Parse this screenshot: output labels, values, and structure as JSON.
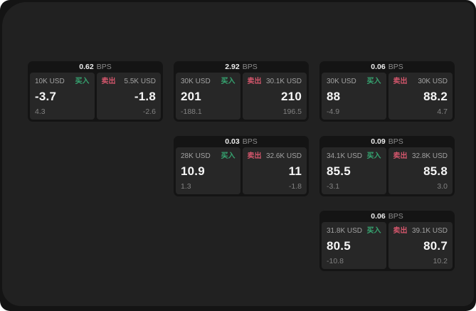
{
  "colors": {
    "buy_green": "#36a571",
    "sell_red": "#d4566c",
    "panel_bg": "#212121",
    "card_bg": "#141414",
    "tile_bg": "#272727"
  },
  "cards": [
    {
      "bps_value": "0.62",
      "bps_unit": "BPS",
      "buy": {
        "amount": "10K USD",
        "side_label": "买入",
        "value": "-3.7",
        "sub_value": "4.3"
      },
      "sell": {
        "side_label": "卖出",
        "amount": "5.5K USD",
        "value": "-1.8",
        "sub_value": "-2.6"
      }
    },
    {
      "bps_value": "2.92",
      "bps_unit": "BPS",
      "buy": {
        "amount": "30K USD",
        "side_label": "买入",
        "value": "201",
        "sub_value": "-188.1"
      },
      "sell": {
        "side_label": "卖出",
        "amount": "30.1K USD",
        "value": "210",
        "sub_value": "196.5"
      }
    },
    {
      "bps_value": "0.06",
      "bps_unit": "BPS",
      "buy": {
        "amount": "30K USD",
        "side_label": "买入",
        "value": "88",
        "sub_value": "-4.9"
      },
      "sell": {
        "side_label": "卖出",
        "amount": "30K USD",
        "value": "88.2",
        "sub_value": "4.7"
      }
    },
    {
      "bps_value": "0.03",
      "bps_unit": "BPS",
      "buy": {
        "amount": "28K USD",
        "side_label": "买入",
        "value": "10.9",
        "sub_value": "1.3"
      },
      "sell": {
        "side_label": "卖出",
        "amount": "32.6K USD",
        "value": "11",
        "sub_value": "-1.8"
      }
    },
    {
      "bps_value": "0.09",
      "bps_unit": "BPS",
      "buy": {
        "amount": "34.1K USD",
        "side_label": "买入",
        "value": "85.5",
        "sub_value": "-3.1"
      },
      "sell": {
        "side_label": "卖出",
        "amount": "32.8K USD",
        "value": "85.8",
        "sub_value": "3.0"
      }
    },
    {
      "bps_value": "0.06",
      "bps_unit": "BPS",
      "buy": {
        "amount": "31.8K USD",
        "side_label": "买入",
        "value": "80.5",
        "sub_value": "-10.8"
      },
      "sell": {
        "side_label": "卖出",
        "amount": "39.1K USD",
        "value": "80.7",
        "sub_value": "10.2"
      }
    }
  ]
}
